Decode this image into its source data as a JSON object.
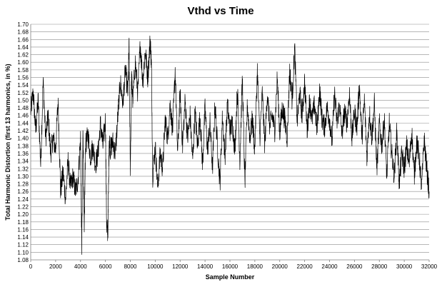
{
  "chart_data": {
    "type": "line",
    "title": "Vthd vs Time",
    "xlabel": "Sample Number",
    "ylabel": "Total Harmonic Distortion (first 13 harmonics, in %)",
    "xlim": [
      0,
      32000
    ],
    "ylim": [
      1.08,
      1.7
    ],
    "x_ticks": [
      0,
      2000,
      4000,
      6000,
      8000,
      10000,
      12000,
      14000,
      16000,
      18000,
      20000,
      22000,
      24000,
      26000,
      28000,
      30000,
      32000
    ],
    "x_tick_labels": [
      "0",
      "2000",
      "4000",
      "6000",
      "8000",
      "10000",
      "12000",
      "14000",
      "16000",
      "18000",
      "20000",
      "22000",
      "24000",
      "26000",
      "28000",
      "30000",
      "32000"
    ],
    "y_ticks": [
      1.08,
      1.1,
      1.12,
      1.14,
      1.16,
      1.18,
      1.2,
      1.22,
      1.24,
      1.26,
      1.28,
      1.3,
      1.32,
      1.34,
      1.36,
      1.38,
      1.4,
      1.42,
      1.44,
      1.46,
      1.48,
      1.5,
      1.52,
      1.54,
      1.56,
      1.58,
      1.6,
      1.62,
      1.64,
      1.66,
      1.68,
      1.7
    ],
    "y_tick_labels": [
      "1.08",
      "1.10",
      "1.12",
      "1.14",
      "1.16",
      "1.18",
      "1.20",
      "1.22",
      "1.24",
      "1.26",
      "1.28",
      "1.30",
      "1.32",
      "1.34",
      "1.36",
      "1.38",
      "1.40",
      "1.42",
      "1.44",
      "1.46",
      "1.48",
      "1.50",
      "1.52",
      "1.54",
      "1.56",
      "1.58",
      "1.60",
      "1.62",
      "1.64",
      "1.66",
      "1.68",
      "1.70"
    ],
    "grid": "horizontal",
    "legend": "none",
    "series_color": "#000000",
    "series": [
      {
        "x": [
          0,
          200,
          400,
          600,
          800,
          1000,
          1200,
          1400,
          1600,
          1800,
          2000,
          2200,
          2400,
          2600,
          2800,
          3000,
          3200,
          3400,
          3600,
          3800,
          4000,
          4100,
          4200,
          4300,
          4400,
          4600,
          4800,
          5000,
          5200,
          5400,
          5600,
          5800,
          6000,
          6100,
          6200,
          6300,
          6400,
          6600,
          6800,
          7000,
          7200,
          7400,
          7600,
          7800,
          7900,
          8000,
          8100,
          8200,
          8400,
          8600,
          8800,
          9000,
          9200,
          9400,
          9600,
          9700,
          9800,
          10000,
          10200,
          10400,
          10600,
          10800,
          11000,
          11200,
          11400,
          11600,
          11800,
          12000,
          12200,
          12400,
          12600,
          12800,
          13000,
          13200,
          13400,
          13600,
          13800,
          14000,
          14200,
          14400,
          14600,
          14800,
          15000,
          15200,
          15400,
          15600,
          15800,
          16000,
          16200,
          16400,
          16600,
          16800,
          17000,
          17200,
          17400,
          17600,
          17800,
          18000,
          18200,
          18400,
          18600,
          18800,
          19000,
          19200,
          19400,
          19600,
          19800,
          20000,
          20200,
          20400,
          20600,
          20800,
          21000,
          21200,
          21400,
          21600,
          21800,
          22000,
          22200,
          22400,
          22600,
          22800,
          23000,
          23200,
          23400,
          23600,
          23800,
          24000,
          24200,
          24400,
          24600,
          24800,
          25000,
          25200,
          25400,
          25600,
          25800,
          26000,
          26200,
          26400,
          26600,
          26800,
          27000,
          27200,
          27400,
          27600,
          27800,
          28000,
          28200,
          28400,
          28600,
          28800,
          29000,
          29200,
          29400,
          29600,
          29800,
          30000,
          30200,
          30400,
          30600,
          30800,
          31000,
          31200,
          31400,
          31600,
          31800,
          32000
        ],
        "values": [
          1.47,
          1.52,
          1.42,
          1.5,
          1.33,
          1.55,
          1.4,
          1.46,
          1.36,
          1.4,
          1.37,
          1.5,
          1.26,
          1.31,
          1.24,
          1.34,
          1.27,
          1.3,
          1.26,
          1.29,
          1.4,
          1.11,
          1.43,
          1.14,
          1.38,
          1.41,
          1.35,
          1.38,
          1.33,
          1.36,
          1.44,
          1.38,
          1.45,
          1.17,
          1.15,
          1.4,
          1.37,
          1.39,
          1.36,
          1.46,
          1.55,
          1.49,
          1.58,
          1.52,
          1.64,
          1.31,
          1.56,
          1.5,
          1.6,
          1.52,
          1.65,
          1.55,
          1.63,
          1.56,
          1.66,
          1.59,
          1.3,
          1.38,
          1.27,
          1.36,
          1.32,
          1.45,
          1.4,
          1.49,
          1.42,
          1.58,
          1.36,
          1.52,
          1.38,
          1.5,
          1.4,
          1.46,
          1.34,
          1.47,
          1.38,
          1.46,
          1.33,
          1.48,
          1.37,
          1.44,
          1.32,
          1.49,
          1.38,
          1.28,
          1.46,
          1.35,
          1.49,
          1.42,
          1.44,
          1.37,
          1.53,
          1.34,
          1.56,
          1.28,
          1.49,
          1.4,
          1.45,
          1.37,
          1.58,
          1.4,
          1.52,
          1.38,
          1.52,
          1.43,
          1.46,
          1.42,
          1.56,
          1.41,
          1.48,
          1.45,
          1.4,
          1.58,
          1.5,
          1.64,
          1.44,
          1.52,
          1.46,
          1.55,
          1.42,
          1.5,
          1.45,
          1.49,
          1.42,
          1.53,
          1.45,
          1.43,
          1.48,
          1.45,
          1.39,
          1.52,
          1.44,
          1.49,
          1.41,
          1.47,
          1.44,
          1.52,
          1.4,
          1.47,
          1.43,
          1.54,
          1.4,
          1.5,
          1.35,
          1.47,
          1.4,
          1.49,
          1.32,
          1.44,
          1.38,
          1.45,
          1.3,
          1.44,
          1.36,
          1.3,
          1.42,
          1.28,
          1.36,
          1.32,
          1.38,
          1.33,
          1.42,
          1.3,
          1.39,
          1.35,
          1.27,
          1.4,
          1.32,
          1.26
        ]
      }
    ]
  }
}
